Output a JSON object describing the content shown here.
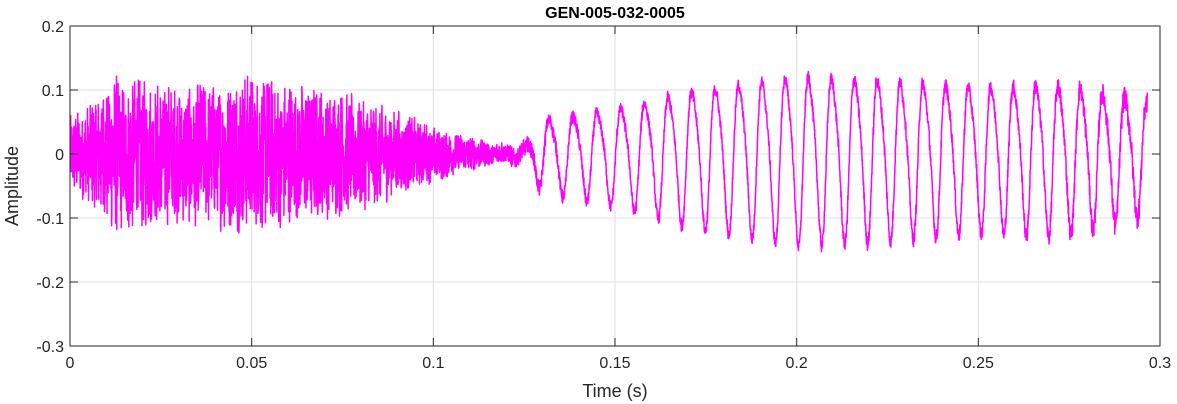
{
  "chart_data": {
    "type": "line",
    "title": "GEN-005-032-0005",
    "xlabel": "Time (s)",
    "ylabel": "Amplitude",
    "xlim": [
      0,
      0.3
    ],
    "ylim": [
      -0.3,
      0.2
    ],
    "xticks": [
      0,
      0.05,
      0.1,
      0.15,
      0.2,
      0.25,
      0.3
    ],
    "xtick_labels": [
      "0",
      "0.05",
      "0.1",
      "0.15",
      "0.2",
      "0.25",
      "0.3"
    ],
    "yticks": [
      -0.3,
      -0.2,
      -0.1,
      0,
      0.1,
      0.2
    ],
    "ytick_labels": [
      "-0.3",
      "-0.2",
      "-0.1",
      "0",
      "0.1",
      "0.2"
    ],
    "grid": true,
    "line_color": "#ff00ff",
    "series": [
      {
        "x_start": 0,
        "x_end": 0.2965,
        "envelope": [
          {
            "x": 0.0,
            "noise": 0.06,
            "periodic": 0.0
          },
          {
            "x": 0.005,
            "noise": 0.08,
            "periodic": 0.0
          },
          {
            "x": 0.012,
            "noise": 0.13,
            "periodic": 0.0
          },
          {
            "x": 0.03,
            "noise": 0.11,
            "periodic": 0.0
          },
          {
            "x": 0.05,
            "noise": 0.13,
            "periodic": 0.0
          },
          {
            "x": 0.075,
            "noise": 0.1,
            "periodic": 0.0
          },
          {
            "x": 0.09,
            "noise": 0.07,
            "periodic": 0.0
          },
          {
            "x": 0.1,
            "noise": 0.045,
            "periodic": 0.0
          },
          {
            "x": 0.115,
            "noise": 0.02,
            "periodic": 0.0
          },
          {
            "x": 0.125,
            "noise": 0.015,
            "periodic": 0.01
          },
          {
            "x": 0.13,
            "noise": 0.012,
            "periodic": 0.065
          },
          {
            "x": 0.15,
            "noise": 0.01,
            "periodic": 0.085
          },
          {
            "x": 0.17,
            "noise": 0.01,
            "periodic": 0.12
          },
          {
            "x": 0.2,
            "noise": 0.01,
            "periodic": 0.15
          },
          {
            "x": 0.22,
            "noise": 0.012,
            "periodic": 0.145
          },
          {
            "x": 0.25,
            "noise": 0.012,
            "periodic": 0.13
          },
          {
            "x": 0.27,
            "noise": 0.015,
            "periodic": 0.135
          },
          {
            "x": 0.285,
            "noise": 0.018,
            "periodic": 0.12
          },
          {
            "x": 0.2965,
            "noise": 0.02,
            "periodic": 0.1
          }
        ],
        "periodic_freq_start_hz": 140,
        "periodic_freq_end_hz": 165,
        "noise_freq_hz": 1500
      }
    ]
  }
}
